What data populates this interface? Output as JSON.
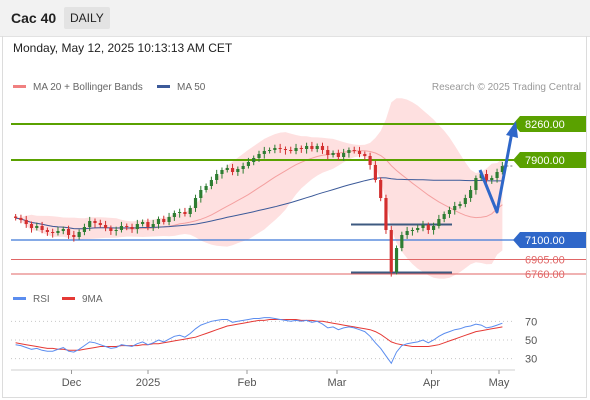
{
  "header": {
    "symbol": "Cac 40",
    "period": "DAILY",
    "datetime": "Monday, May 12, 2025 10:13:13 AM CET"
  },
  "colors": {
    "resistance": "#5aa100",
    "support": "#3c78d8",
    "pivot_blue": "#2f67c9",
    "minor_support": "#e06666",
    "bollinger_fill": "#fdd5d5",
    "ma20": "#f4a0a0",
    "ma50": "#3c5a99",
    "candle_up": "#2e7d32",
    "candle_down": "#d32f2f",
    "rsi": "#5b8def",
    "rsi_ma": "#e53935",
    "forecast": "#2f67c9"
  },
  "chart_data": [
    {
      "type": "candlestick",
      "legend": [
        {
          "label": "MA 20 + Bollinger Bands",
          "color": "#f08080"
        },
        {
          "label": "MA 50",
          "color": "#3c5a99"
        }
      ],
      "watermark": "Research © 2025 Trading Central",
      "x_tick_labels": [
        "Dec",
        "2025",
        "Feb",
        "Mar",
        "Apr",
        "May"
      ],
      "ylim": [
        6700,
        8380
      ],
      "levels": [
        {
          "value": 8260.0,
          "label": "8260.00",
          "kind": "resistance"
        },
        {
          "value": 7900.0,
          "label": "7900.00",
          "kind": "resistance"
        },
        {
          "value": 7100.0,
          "label": "7100.00",
          "kind": "support"
        },
        {
          "value": 6905.0,
          "label": "6905.00",
          "kind": "minor"
        },
        {
          "value": 6760.0,
          "label": "6760.00",
          "kind": "minor"
        }
      ],
      "last_price": 7840,
      "closes": [
        7320,
        7300,
        7260,
        7220,
        7240,
        7200,
        7180,
        7170,
        7190,
        7210,
        7150,
        7130,
        7180,
        7230,
        7290,
        7270,
        7250,
        7220,
        7190,
        7200,
        7240,
        7230,
        7210,
        7260,
        7280,
        7230,
        7260,
        7310,
        7280,
        7330,
        7370,
        7380,
        7360,
        7420,
        7520,
        7600,
        7640,
        7700,
        7760,
        7800,
        7820,
        7780,
        7810,
        7840,
        7880,
        7920,
        7960,
        7990,
        8000,
        8020,
        8010,
        8000,
        7990,
        8020,
        8010,
        8040,
        8010,
        8040,
        8000,
        7950,
        7970,
        7930,
        7970,
        8000,
        7990,
        7960,
        7940,
        7850,
        7700,
        7520,
        7200,
        6780,
        7020,
        7150,
        7190,
        7200,
        7220,
        7250,
        7200,
        7240,
        7310,
        7360,
        7400,
        7440,
        7460,
        7520,
        7600,
        7720,
        7760,
        7700,
        7720,
        7780,
        7840
      ]
    },
    {
      "type": "line",
      "legend": [
        {
          "label": "RSI",
          "color": "#5b8def"
        },
        {
          "label": "9MA",
          "color": "#e53935"
        }
      ],
      "ylim": [
        20,
        80
      ],
      "y_tick_labels": [
        "70",
        "50",
        "30"
      ],
      "rsi": [
        45,
        44,
        42,
        40,
        41,
        39,
        38,
        38,
        40,
        42,
        38,
        37,
        40,
        44,
        48,
        47,
        45,
        43,
        41,
        42,
        45,
        44,
        43,
        46,
        48,
        45,
        47,
        50,
        48,
        51,
        54,
        55,
        53,
        57,
        62,
        66,
        68,
        70,
        71,
        72,
        72,
        69,
        70,
        71,
        72,
        73,
        73,
        74,
        74,
        73,
        72,
        71,
        70,
        71,
        70,
        71,
        69,
        70,
        67,
        63,
        64,
        61,
        63,
        64,
        63,
        61,
        59,
        54,
        47,
        41,
        33,
        25,
        37,
        44,
        46,
        47,
        48,
        50,
        47,
        50,
        54,
        57,
        59,
        61,
        62,
        64,
        65,
        67,
        66,
        63,
        64,
        66,
        68
      ],
      "rsi_ma": [
        47,
        46,
        45,
        44,
        43,
        42,
        41,
        41,
        40,
        40,
        39,
        39,
        39,
        40,
        41,
        42,
        43,
        43,
        43,
        43,
        44,
        44,
        44,
        44,
        45,
        45,
        46,
        46,
        47,
        48,
        49,
        50,
        51,
        52,
        53,
        55,
        57,
        59,
        61,
        63,
        65,
        66,
        67,
        68,
        69,
        70,
        71,
        71,
        72,
        72,
        72,
        72,
        72,
        72,
        71,
        71,
        71,
        70,
        70,
        69,
        68,
        67,
        66,
        65,
        64,
        63,
        62,
        61,
        59,
        56,
        52,
        48,
        46,
        45,
        44,
        43,
        43,
        43,
        43,
        44,
        45,
        47,
        49,
        51,
        53,
        55,
        57,
        59,
        60,
        61,
        62,
        63,
        64
      ]
    }
  ]
}
